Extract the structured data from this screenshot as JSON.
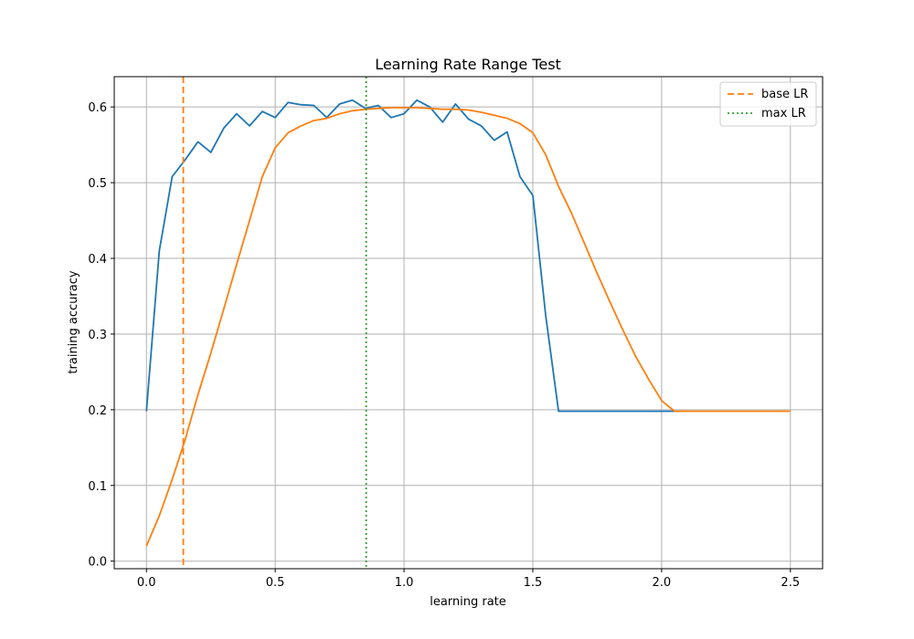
{
  "chart_data": {
    "type": "line",
    "title": "Learning Rate Range Test",
    "xlabel": "learning rate",
    "ylabel": "training accuracy",
    "xlim": [
      -0.125,
      2.625
    ],
    "ylim": [
      -0.01,
      0.64
    ],
    "xticks": [
      0.0,
      0.5,
      1.0,
      1.5,
      2.0,
      2.5
    ],
    "xtick_labels": [
      "0.0",
      "0.5",
      "1.0",
      "1.5",
      "2.0",
      "2.5"
    ],
    "yticks": [
      0.0,
      0.1,
      0.2,
      0.3,
      0.4,
      0.5,
      0.6
    ],
    "ytick_labels": [
      "0.0",
      "0.1",
      "0.2",
      "0.3",
      "0.4",
      "0.5",
      "0.6"
    ],
    "grid": true,
    "legend_position": "top-right",
    "series": [
      {
        "color": "#1f77b4",
        "x": [
          0.0,
          0.05,
          0.1,
          0.15,
          0.2,
          0.25,
          0.3,
          0.35,
          0.4,
          0.45,
          0.5,
          0.55,
          0.6,
          0.65,
          0.7,
          0.75,
          0.8,
          0.85,
          0.9,
          0.95,
          1.0,
          1.05,
          1.1,
          1.15,
          1.2,
          1.25,
          1.3,
          1.35,
          1.4,
          1.45,
          1.5,
          1.55,
          1.6,
          1.65,
          1.7,
          1.75,
          1.8,
          1.85,
          1.9,
          1.95,
          2.0,
          2.05
        ],
        "y": [
          0.198,
          0.41,
          0.508,
          0.53,
          0.554,
          0.54,
          0.572,
          0.591,
          0.575,
          0.594,
          0.586,
          0.606,
          0.603,
          0.602,
          0.586,
          0.604,
          0.609,
          0.598,
          0.602,
          0.586,
          0.591,
          0.609,
          0.6,
          0.58,
          0.604,
          0.584,
          0.575,
          0.556,
          0.567,
          0.508,
          0.483,
          0.325,
          0.198,
          0.198,
          0.198,
          0.198,
          0.198,
          0.198,
          0.198,
          0.198,
          0.198,
          0.198
        ]
      },
      {
        "color": "#ff7f0e",
        "x": [
          0.0,
          0.05,
          0.1,
          0.15,
          0.2,
          0.25,
          0.3,
          0.35,
          0.4,
          0.45,
          0.5,
          0.55,
          0.6,
          0.65,
          0.7,
          0.75,
          0.8,
          0.85,
          0.9,
          0.95,
          1.0,
          1.05,
          1.1,
          1.15,
          1.2,
          1.25,
          1.3,
          1.35,
          1.4,
          1.45,
          1.5,
          1.55,
          1.6,
          1.65,
          1.7,
          1.75,
          1.8,
          1.85,
          1.9,
          1.95,
          2.0,
          2.05,
          2.1,
          2.2,
          2.3,
          2.4,
          2.5
        ],
        "y": [
          0.02,
          0.06,
          0.108,
          0.16,
          0.22,
          0.275,
          0.333,
          0.392,
          0.45,
          0.508,
          0.546,
          0.566,
          0.575,
          0.582,
          0.585,
          0.591,
          0.595,
          0.597,
          0.598,
          0.599,
          0.599,
          0.599,
          0.598,
          0.597,
          0.597,
          0.596,
          0.593,
          0.589,
          0.585,
          0.578,
          0.566,
          0.537,
          0.495,
          0.46,
          0.42,
          0.38,
          0.342,
          0.305,
          0.27,
          0.24,
          0.212,
          0.198,
          0.198,
          0.198,
          0.198,
          0.198,
          0.198
        ]
      }
    ],
    "vlines": [
      {
        "name": "base LR",
        "x": 0.143,
        "color": "#ff7f0e",
        "style": "dashed"
      },
      {
        "name": "max LR",
        "x": 0.853,
        "color": "#2ca02c",
        "style": "dotted"
      }
    ]
  }
}
